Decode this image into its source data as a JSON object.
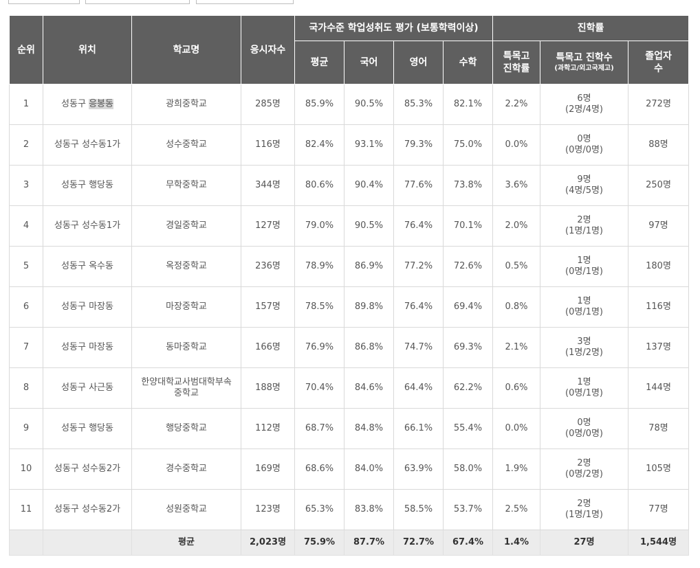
{
  "headers": {
    "rank": "순위",
    "location": "위치",
    "school": "학교명",
    "applicants": "응시자수",
    "assessment_group": "국가수준 학업성취도 평가 (보통학력이상)",
    "avg": "평균",
    "korean": "국어",
    "english": "영어",
    "math": "수학",
    "advancement_group": "진학률",
    "special_rate": "특목고 진학률",
    "special_count": "특목고 진학수",
    "special_count_sub": "(과학고/외고국제고)",
    "graduates": "졸업자수"
  },
  "rows": [
    {
      "rank": "1",
      "district": "성동구",
      "dong": "응봉동",
      "school": "광희중학교",
      "applicants": "285명",
      "avg": "85.9%",
      "korean": "90.5%",
      "english": "85.3%",
      "math": "82.1%",
      "special_rate": "2.2%",
      "special_total": "6명",
      "special_split": "(2명/4명)",
      "graduates": "272명"
    },
    {
      "rank": "2",
      "district": "성동구",
      "dong": "성수동1가",
      "school": "성수중학교",
      "applicants": "116명",
      "avg": "82.4%",
      "korean": "93.1%",
      "english": "79.3%",
      "math": "75.0%",
      "special_rate": "0.0%",
      "special_total": "0명",
      "special_split": "(0명/0명)",
      "graduates": "88명"
    },
    {
      "rank": "3",
      "district": "성동구",
      "dong": "행당동",
      "school": "무학중학교",
      "applicants": "344명",
      "avg": "80.6%",
      "korean": "90.4%",
      "english": "77.6%",
      "math": "73.8%",
      "special_rate": "3.6%",
      "special_total": "9명",
      "special_split": "(4명/5명)",
      "graduates": "250명"
    },
    {
      "rank": "4",
      "district": "성동구",
      "dong": "성수동1가",
      "school": "경일중학교",
      "applicants": "127명",
      "avg": "79.0%",
      "korean": "90.5%",
      "english": "76.4%",
      "math": "70.1%",
      "special_rate": "2.0%",
      "special_total": "2명",
      "special_split": "(1명/1명)",
      "graduates": "97명"
    },
    {
      "rank": "5",
      "district": "성동구",
      "dong": "옥수동",
      "school": "옥정중학교",
      "applicants": "236명",
      "avg": "78.9%",
      "korean": "86.9%",
      "english": "77.2%",
      "math": "72.6%",
      "special_rate": "0.5%",
      "special_total": "1명",
      "special_split": "(0명/1명)",
      "graduates": "180명"
    },
    {
      "rank": "6",
      "district": "성동구",
      "dong": "마장동",
      "school": "마장중학교",
      "applicants": "157명",
      "avg": "78.5%",
      "korean": "89.8%",
      "english": "76.4%",
      "math": "69.4%",
      "special_rate": "0.8%",
      "special_total": "1명",
      "special_split": "(0명/1명)",
      "graduates": "116명"
    },
    {
      "rank": "7",
      "district": "성동구",
      "dong": "마장동",
      "school": "동마중학교",
      "applicants": "166명",
      "avg": "76.9%",
      "korean": "86.8%",
      "english": "74.7%",
      "math": "69.3%",
      "special_rate": "2.1%",
      "special_total": "3명",
      "special_split": "(1명/2명)",
      "graduates": "137명"
    },
    {
      "rank": "8",
      "district": "성동구",
      "dong": "사근동",
      "school": "한양대학교사범대학부속중학교",
      "applicants": "188명",
      "avg": "70.4%",
      "korean": "84.6%",
      "english": "64.4%",
      "math": "62.2%",
      "special_rate": "0.6%",
      "special_total": "1명",
      "special_split": "(0명/1명)",
      "graduates": "144명"
    },
    {
      "rank": "9",
      "district": "성동구",
      "dong": "행당동",
      "school": "행당중학교",
      "applicants": "112명",
      "avg": "68.7%",
      "korean": "84.8%",
      "english": "66.1%",
      "math": "55.4%",
      "special_rate": "0.0%",
      "special_total": "0명",
      "special_split": "(0명/0명)",
      "graduates": "78명"
    },
    {
      "rank": "10",
      "district": "성동구",
      "dong": "성수동2가",
      "school": "경수중학교",
      "applicants": "169명",
      "avg": "68.6%",
      "korean": "84.0%",
      "english": "63.9%",
      "math": "58.0%",
      "special_rate": "1.9%",
      "special_total": "2명",
      "special_split": "(0명/2명)",
      "graduates": "105명"
    },
    {
      "rank": "11",
      "district": "성동구",
      "dong": "성수동2가",
      "school": "성원중학교",
      "applicants": "123명",
      "avg": "65.3%",
      "korean": "83.8%",
      "english": "58.5%",
      "math": "53.7%",
      "special_rate": "2.5%",
      "special_total": "2명",
      "special_split": "(1명/1명)",
      "graduates": "77명"
    }
  ],
  "average_row": {
    "label": "평균",
    "applicants": "2,023명",
    "avg": "75.9%",
    "korean": "87.7%",
    "english": "72.7%",
    "math": "67.4%",
    "special_rate": "1.4%",
    "special_count": "27명",
    "graduates": "1,544명"
  }
}
